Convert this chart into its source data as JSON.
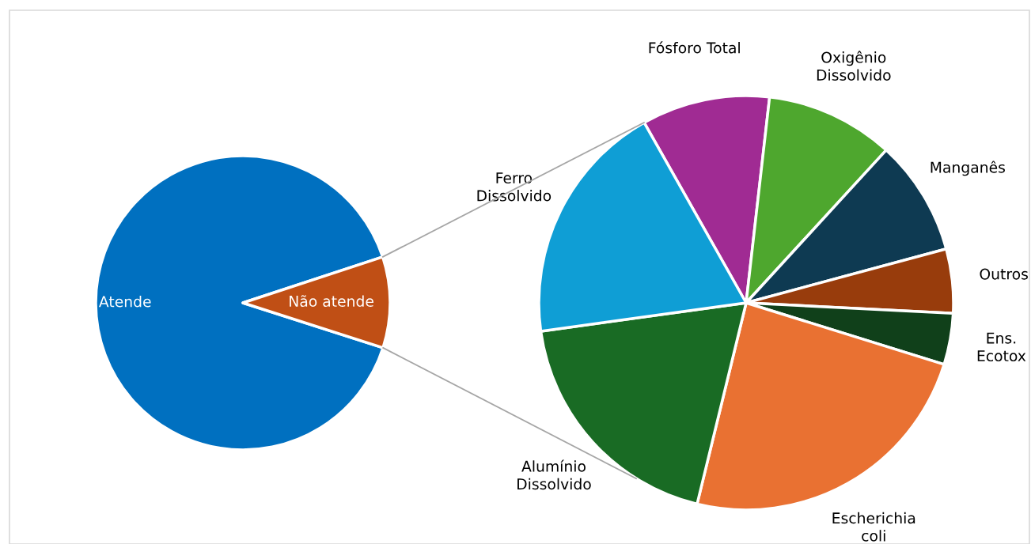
{
  "chart_data": [
    {
      "type": "pie",
      "categories": [
        "Atende",
        "Não atende"
      ],
      "values": [
        90,
        10
      ],
      "colors": [
        "#0070c0",
        "#c04f15"
      ]
    },
    {
      "type": "pie",
      "categories": [
        "Fósforo Total",
        "Oxigênio\nDissolvido",
        "Manganês",
        "Outros",
        "Ens.\nEcotox",
        "Escherichia\ncoli",
        "Alumínio\nDissolvido",
        "Ferro\nDissolvido"
      ],
      "values": [
        10,
        10,
        9,
        5,
        4,
        24,
        19,
        19
      ],
      "colors": [
        "#a02b93",
        "#4ea72e",
        "#0e3a52",
        "#983c0c",
        "#10401a",
        "#e97132",
        "#196b24",
        "#0f9ed5"
      ]
    }
  ]
}
